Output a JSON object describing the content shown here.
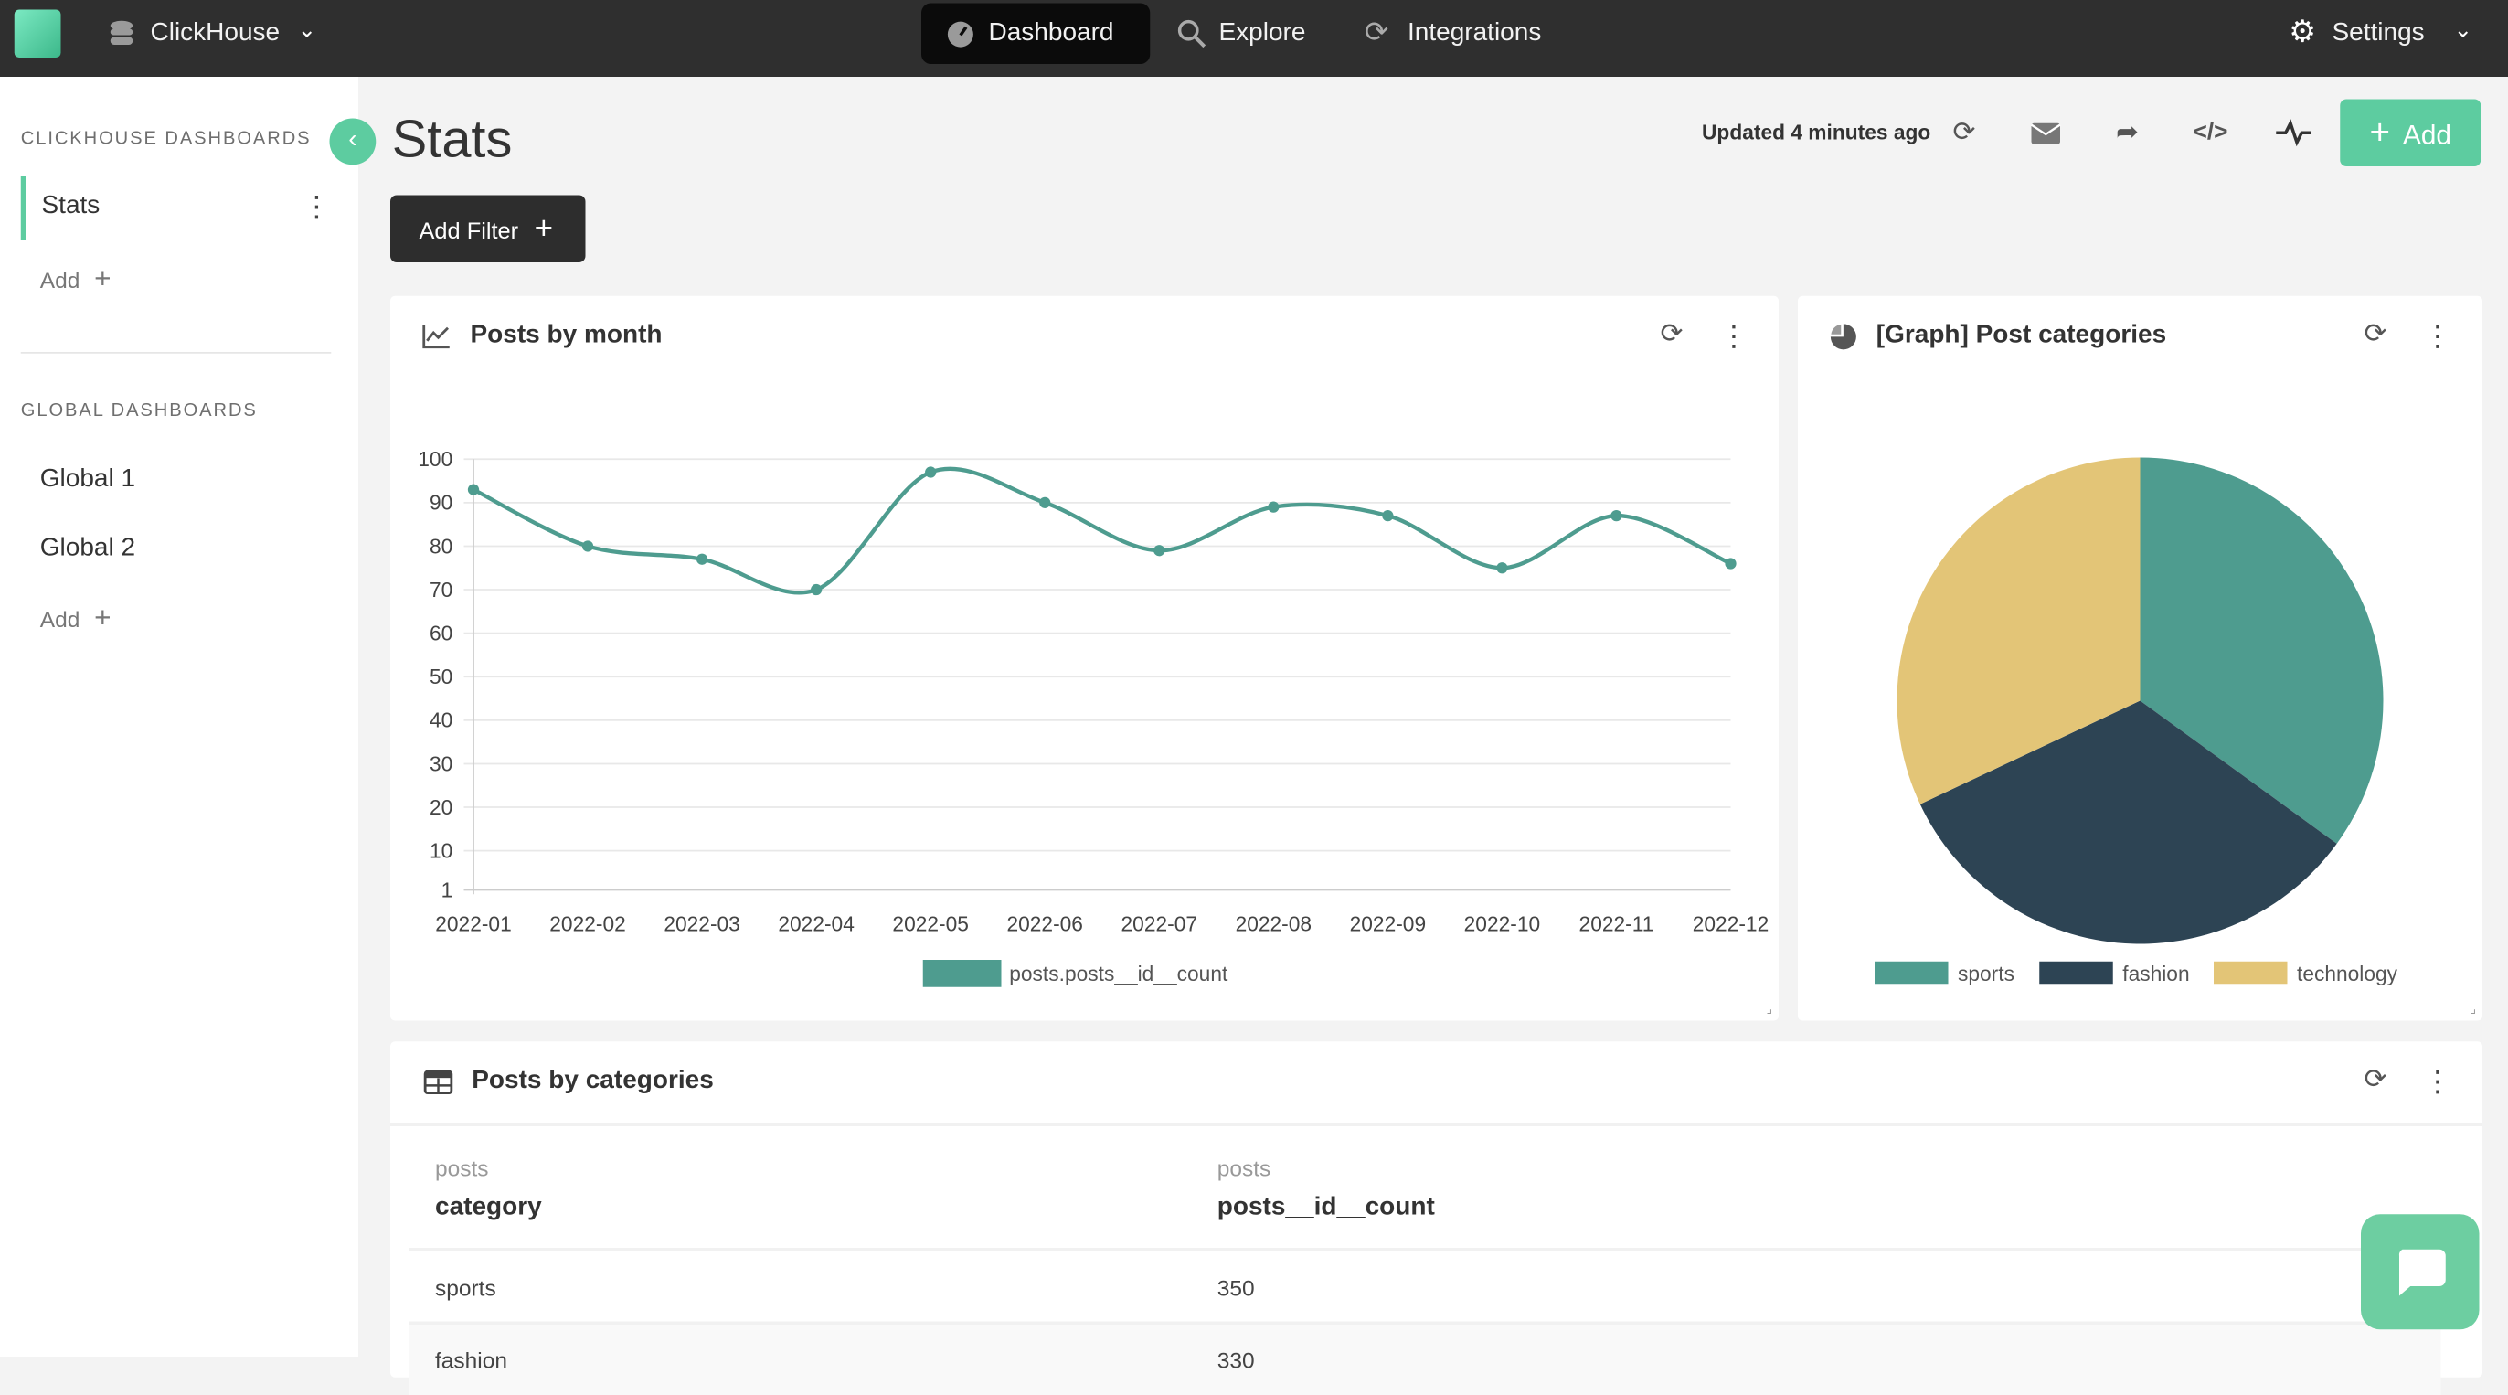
{
  "topbar": {
    "datasource": "ClickHouse",
    "nav": [
      {
        "label": "Dashboard",
        "icon": "dashboard-gauge-icon",
        "active": true
      },
      {
        "label": "Explore",
        "icon": "search-icon"
      },
      {
        "label": "Integrations",
        "icon": "sync-icon"
      }
    ],
    "settings": "Settings"
  },
  "sidebar": {
    "section1": "CLICKHOUSE DASHBOARDS",
    "items1": [
      {
        "label": "Stats",
        "active": true
      }
    ],
    "add": "Add",
    "section2": "GLOBAL DASHBOARDS",
    "items2": [
      {
        "label": "Global 1"
      },
      {
        "label": "Global 2"
      }
    ]
  },
  "header": {
    "title": "Stats",
    "updated": "Updated 4 minutes ago",
    "add": "Add",
    "add_filter": "Add Filter"
  },
  "colors": {
    "accent": "#5dcca0",
    "series_teal": "#4e9c8f",
    "series_dark": "#2d4454",
    "series_yellow": "#e3c577"
  },
  "cards": {
    "line_title": "Posts by month",
    "pie_title": "[Graph] Post categories",
    "table_title": "Posts by categories"
  },
  "table": {
    "columns": [
      {
        "source": "posts",
        "name": "category"
      },
      {
        "source": "posts",
        "name": "posts__id__count"
      }
    ],
    "rows": [
      [
        "sports",
        "350"
      ],
      [
        "fashion",
        "330"
      ]
    ]
  },
  "chart_data": [
    {
      "type": "line",
      "title": "Posts by month",
      "categories": [
        "2022-01",
        "2022-02",
        "2022-03",
        "2022-04",
        "2022-05",
        "2022-06",
        "2022-07",
        "2022-08",
        "2022-09",
        "2022-10",
        "2022-11",
        "2022-12"
      ],
      "series": [
        {
          "name": "posts.posts__id__count",
          "values": [
            93,
            80,
            77,
            70,
            97,
            90,
            79,
            89,
            87,
            75,
            87,
            76
          ]
        }
      ],
      "yticks": [
        "1",
        "10",
        "20",
        "30",
        "40",
        "50",
        "60",
        "70",
        "80",
        "90",
        "100"
      ],
      "ylim": [
        0,
        100
      ],
      "grid": true,
      "legend": "bottom"
    },
    {
      "type": "pie",
      "title": "[Graph] Post categories",
      "categories": [
        "sports",
        "fashion",
        "technology"
      ],
      "values": [
        350,
        330,
        320
      ],
      "legend": "bottom"
    }
  ]
}
